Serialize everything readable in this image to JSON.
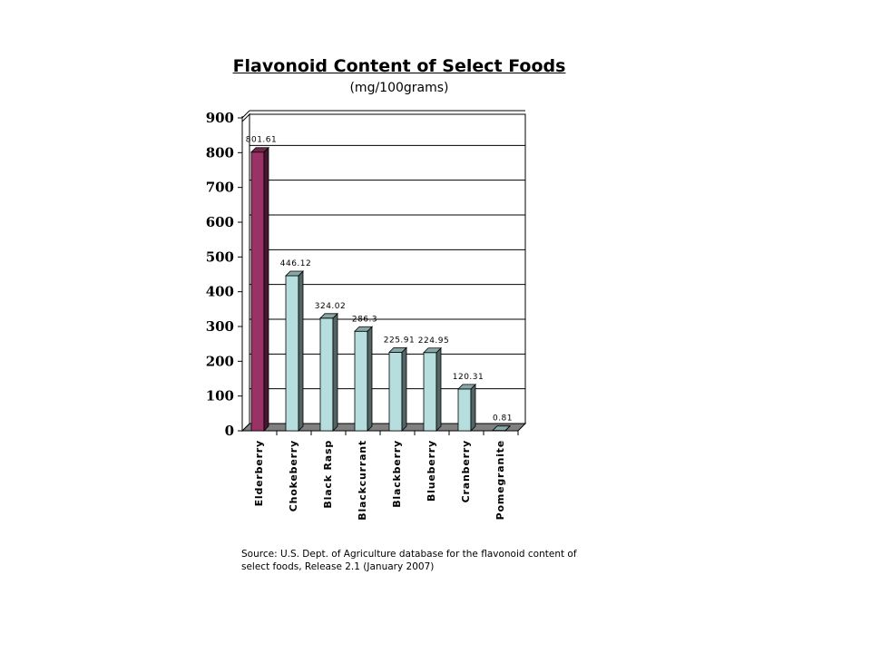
{
  "chart_data": {
    "type": "bar",
    "title": "Flavonoid Content of Select Foods",
    "subtitle": "(mg/100grams)",
    "categories": [
      "Elderberry",
      "Chokeberry",
      "Black Rasp",
      "Blackcurrant",
      "Blackberry",
      "Blueberry",
      "Cranberry",
      "Pomegranite"
    ],
    "values": [
      801.61,
      446.12,
      324.02,
      286.3,
      225.91,
      224.95,
      120.31,
      0.81
    ],
    "value_labels": [
      "801.61",
      "446.12",
      "324.02",
      "286.3",
      "225.91",
      "224.95",
      "120.31",
      "0.81"
    ],
    "y_ticks": [
      "0",
      "100",
      "200",
      "300",
      "400",
      "500",
      "600",
      "700",
      "800",
      "900"
    ],
    "ylim": [
      0,
      900
    ],
    "grid": true,
    "legend": "none",
    "highlight_color": "#993366",
    "bar_color": "#b7dede",
    "source": "Source: U.S. Dept. of Agriculture database for the flavonoid content of select foods, Release 2.1 (January 2007)"
  }
}
